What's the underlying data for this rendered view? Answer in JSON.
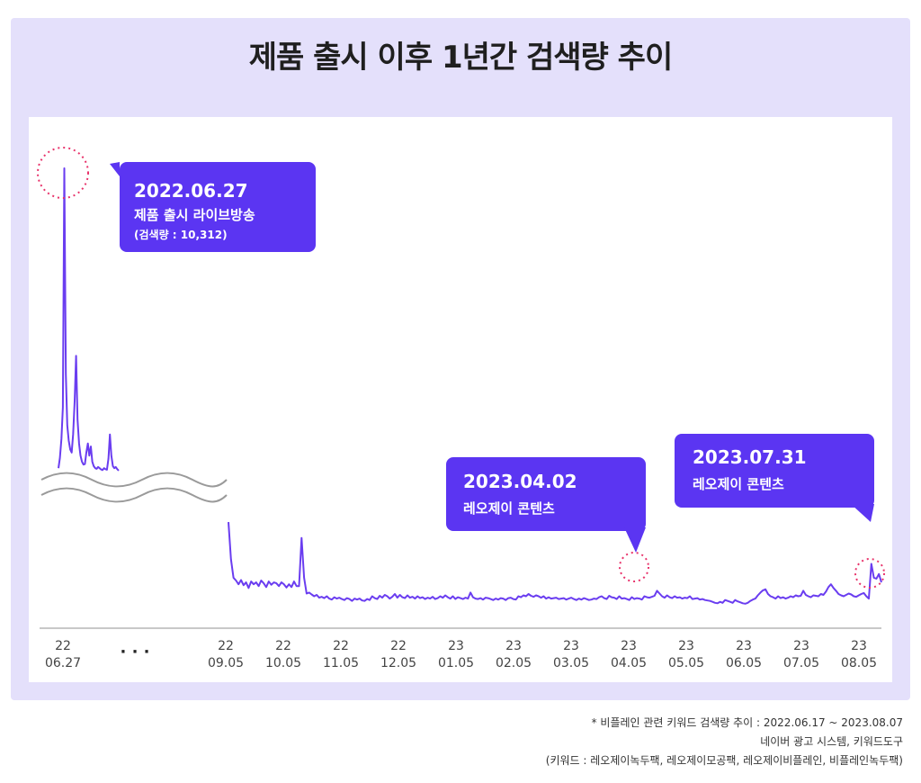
{
  "title": "제품 출시 이후 1년간 검색량 추이",
  "chart_data": {
    "type": "line",
    "title": "제품 출시 이후 1년간 검색량 추이",
    "line_color": "#6a3df0",
    "bubble_color": "#5b35f2",
    "x_axis_breaks": [
      {
        "from_label_index": 0,
        "to_label_index": 2,
        "symbol": "· · ·"
      }
    ],
    "y_axis_break": true,
    "x_tick_labels": [
      {
        "year": "22",
        "date": "06.27"
      },
      {
        "year": "",
        "date": "· · ·"
      },
      {
        "year": "22",
        "date": "09.05"
      },
      {
        "year": "22",
        "date": "10.05"
      },
      {
        "year": "22",
        "date": "11.05"
      },
      {
        "year": "22",
        "date": "12.05"
      },
      {
        "year": "23",
        "date": "01.05"
      },
      {
        "year": "23",
        "date": "02.05"
      },
      {
        "year": "23",
        "date": "03.05"
      },
      {
        "year": "23",
        "date": "04.05"
      },
      {
        "year": "23",
        "date": "05.05"
      },
      {
        "year": "23",
        "date": "06.05"
      },
      {
        "year": "23",
        "date": "07.05"
      },
      {
        "year": "23",
        "date": "08.05"
      }
    ],
    "annotations": [
      {
        "date": "2022.06.27",
        "label": "제품 출시 라이브방송",
        "note": "(검색량 : 10,312)",
        "value": 10312
      },
      {
        "date": "2023.04.02",
        "label": "레오제이 콘텐츠"
      },
      {
        "date": "2023.07.31",
        "label": "레오제이 콘텐츠"
      }
    ],
    "peak_value": 10312,
    "series": [
      {
        "segment": "launch",
        "values": [
          380,
          720,
          1350,
          2400,
          10312,
          3500,
          1800,
          1300,
          1000,
          900,
          1500,
          2600,
          4100,
          2000,
          1200,
          800,
          600,
          500,
          520,
          900,
          1200,
          800,
          1100,
          600,
          450,
          380,
          360,
          420,
          380,
          340,
          320,
          380,
          350,
          330,
          700,
          1500,
          800,
          450,
          380,
          420,
          350,
          300
        ]
      },
      {
        "segment": "main",
        "values": [
          1900,
          1100,
          700,
          640,
          560,
          650,
          540,
          600,
          480,
          620,
          560,
          600,
          520,
          640,
          580,
          500,
          620,
          550,
          600,
          580,
          520,
          600,
          560,
          490,
          560,
          500,
          620,
          520,
          520,
          1560,
          700,
          360,
          380,
          340,
          300,
          330,
          270,
          290,
          260,
          300,
          250,
          230,
          280,
          250,
          270,
          240,
          220,
          260,
          240,
          200,
          250,
          230,
          250,
          210,
          200,
          240,
          220,
          300,
          260,
          240,
          310,
          270,
          330,
          300,
          250,
          290,
          350,
          270,
          330,
          280,
          260,
          320,
          270,
          290,
          250,
          300,
          260,
          280,
          240,
          270,
          250,
          290,
          240,
          260,
          300,
          270,
          320,
          280,
          250,
          300,
          240,
          280,
          260,
          240,
          270,
          250,
          380,
          280,
          250,
          240,
          260,
          230,
          270,
          260,
          240,
          220,
          250,
          230,
          260,
          250,
          220,
          260,
          270,
          240,
          230,
          300,
          280,
          320,
          300,
          350,
          310,
          290,
          320,
          300,
          270,
          300,
          250,
          280,
          250,
          260,
          270,
          240,
          250,
          260,
          230,
          250,
          270,
          240,
          220,
          250,
          230,
          260,
          240,
          220,
          230,
          250,
          240,
          280,
          300,
          260,
          240,
          310,
          280,
          270,
          240,
          300,
          250,
          260,
          240,
          220,
          280,
          240,
          260,
          250,
          230,
          300,
          280,
          270,
          290,
          310,
          420,
          360,
          300,
          270,
          320,
          280,
          260,
          300,
          270,
          280,
          250,
          270,
          260,
          300,
          240,
          250,
          260,
          230,
          240,
          220,
          210,
          200,
          180,
          160,
          150,
          180,
          160,
          220,
          200,
          180,
          160,
          220,
          190,
          170,
          150,
          140,
          160,
          200,
          230,
          250,
          320,
          380,
          430,
          450,
          350,
          300,
          280,
          250,
          300,
          260,
          280,
          250,
          270,
          300,
          280,
          320,
          300,
          310,
          420,
          330,
          300,
          280,
          320,
          310,
          300,
          350,
          330,
          400,
          500,
          560,
          480,
          420,
          350,
          320,
          300,
          330,
          360,
          340,
          300,
          290,
          320,
          350,
          370,
          300,
          250,
          1000,
          700,
          680,
          780,
          600
        ]
      }
    ]
  },
  "source": {
    "line1": "* 비플레인 관련 키워드 검색량 추이 : 2022.06.17 ~ 2023.08.07",
    "line2": "네이버 광고 시스템, 키워드도구",
    "line3": "(키워드 : 레오제이녹두팩, 레오제이모공팩, 레오제이비플레인, 비플레인녹두팩)"
  }
}
